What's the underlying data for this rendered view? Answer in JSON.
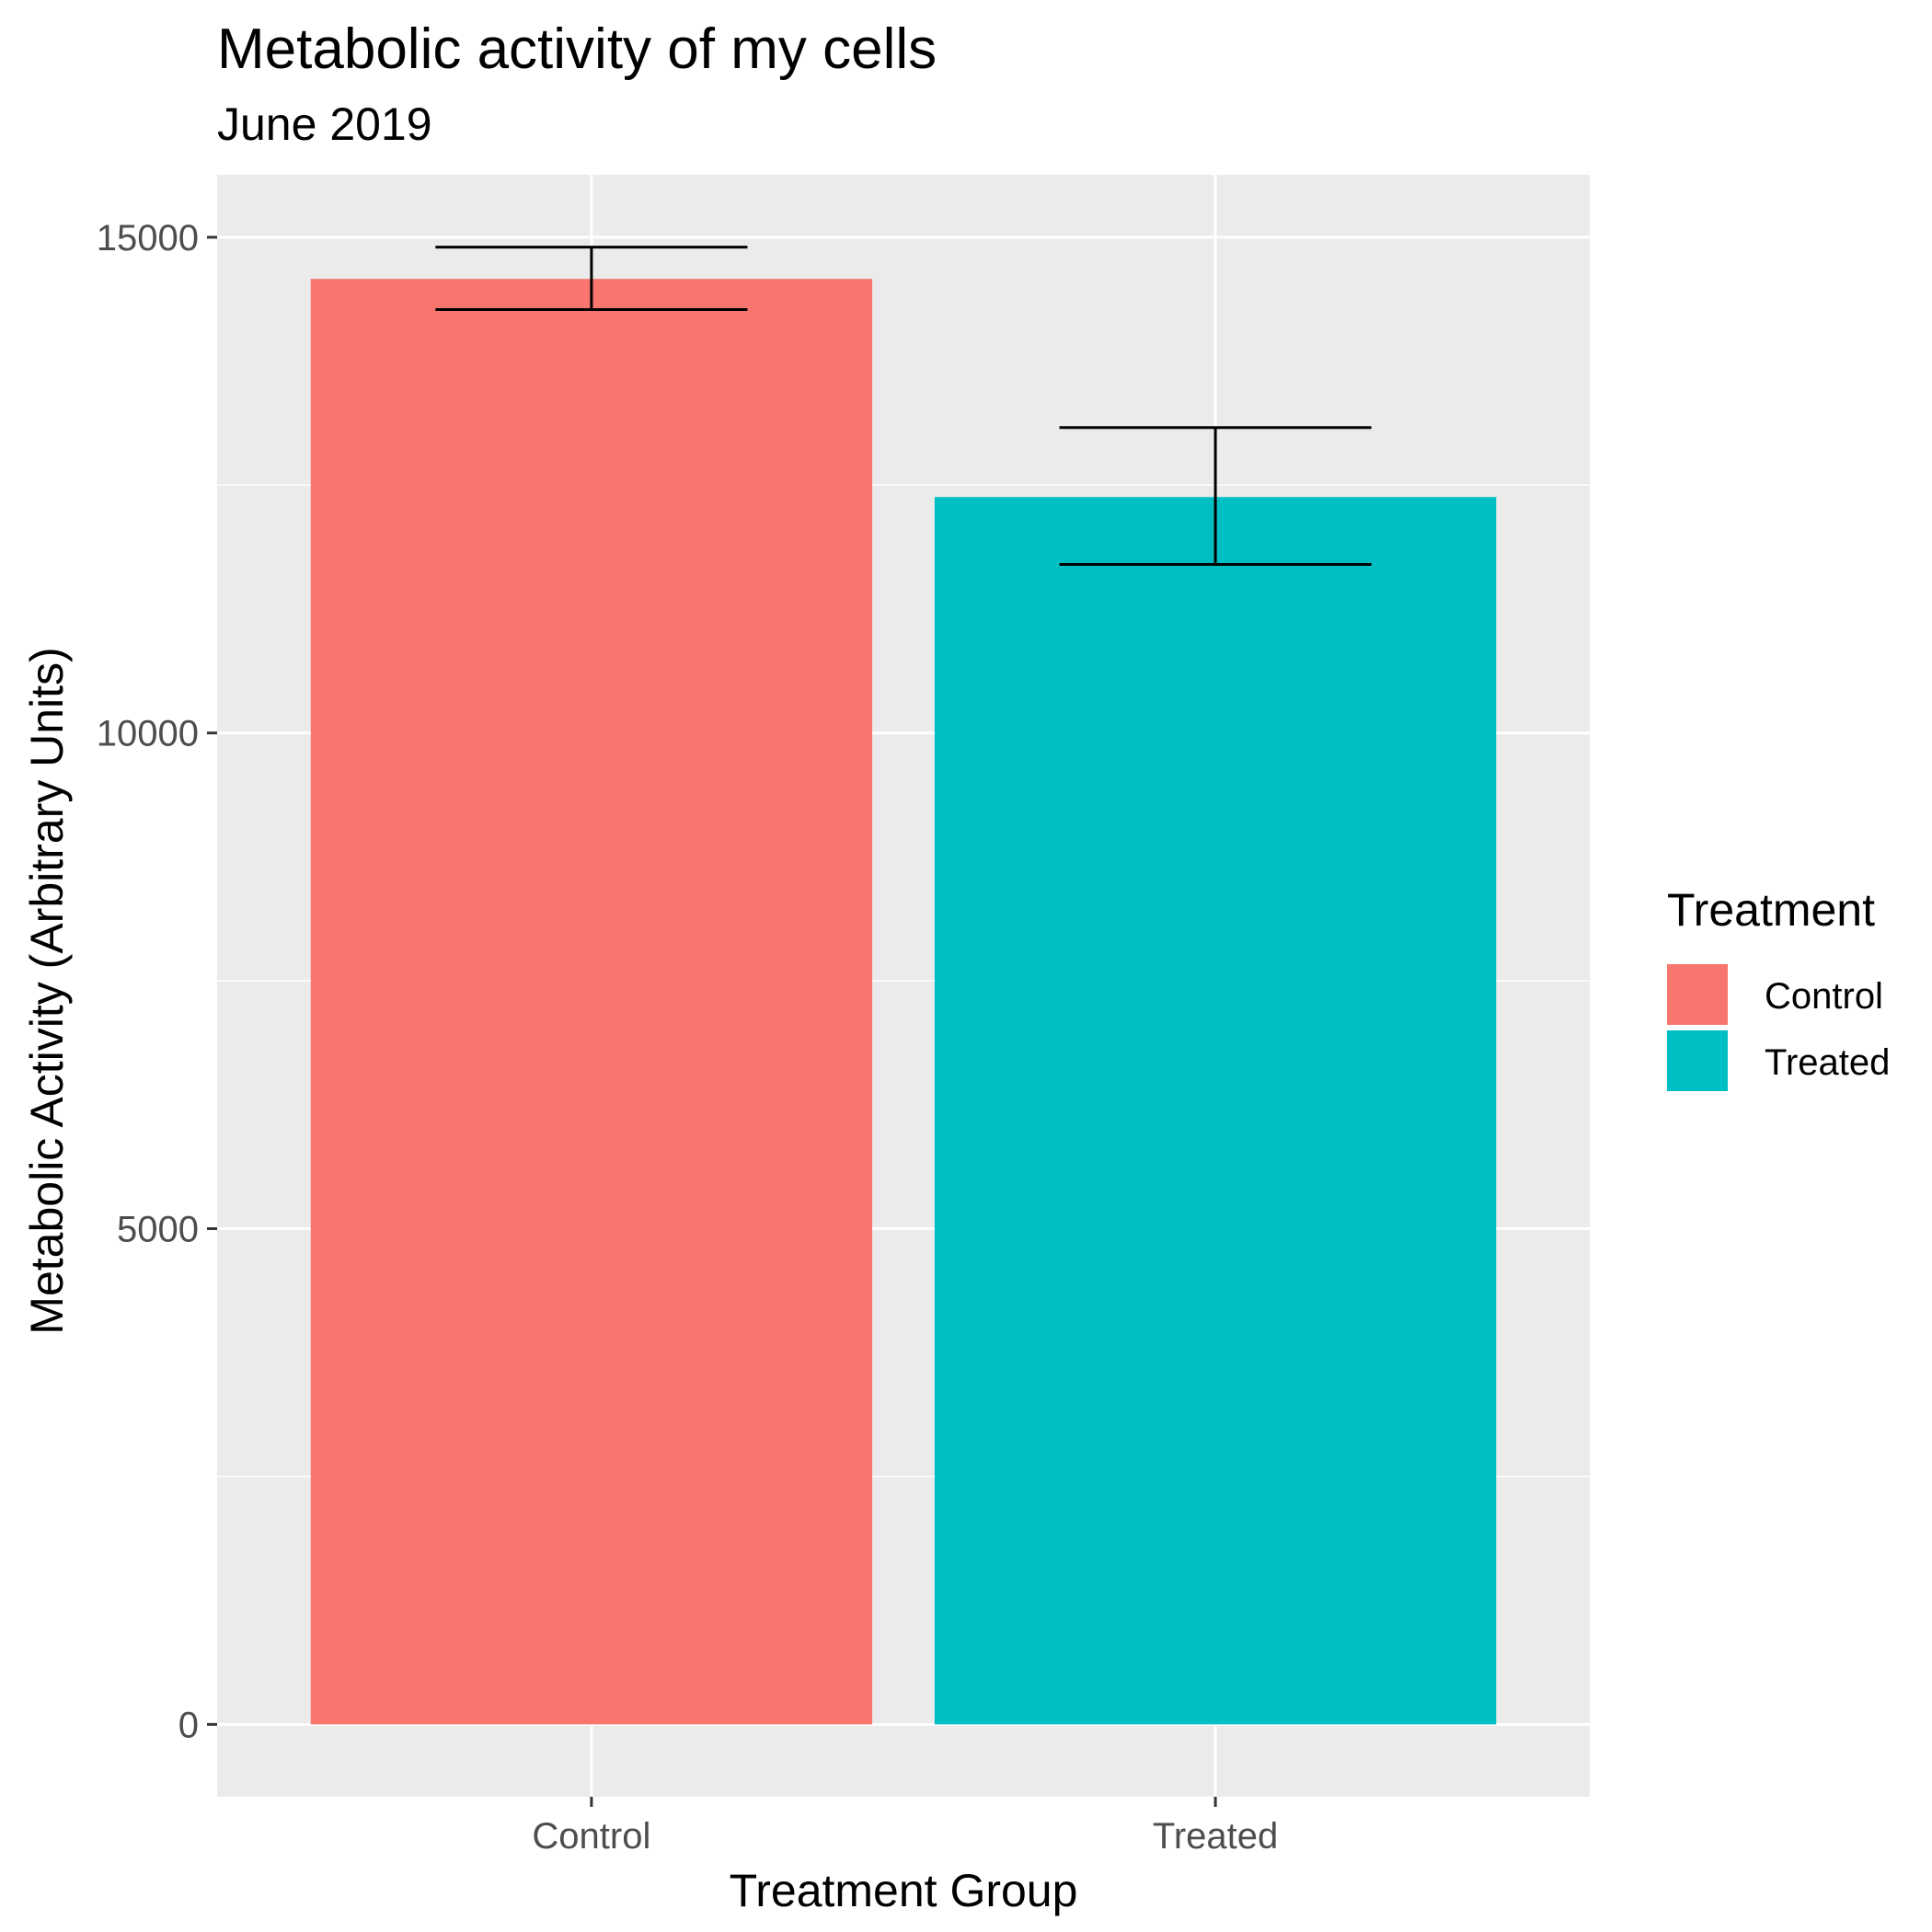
{
  "chart_data": {
    "type": "bar",
    "title": "Metabolic activity of my cells",
    "subtitle": "June 2019",
    "xlabel": "Treatment Group",
    "ylabel": "Metabolic Activity (Arbitrary Units)",
    "categories": [
      "Control",
      "Treated"
    ],
    "values": [
      14580,
      12380
    ],
    "error_bars": [
      {
        "low": 14270,
        "high": 14900
      },
      {
        "low": 11700,
        "high": 13080
      }
    ],
    "colors": [
      "#F8766D",
      "#00BFC4"
    ],
    "y_ticks": [
      0,
      5000,
      10000,
      15000
    ],
    "y_tick_labels": [
      "0",
      "5000",
      "10000",
      "15000"
    ],
    "ylim": [
      -730,
      15630
    ],
    "grid": true,
    "legend": {
      "title": "Treatment",
      "position": "right",
      "entries": [
        "Control",
        "Treated"
      ]
    }
  }
}
